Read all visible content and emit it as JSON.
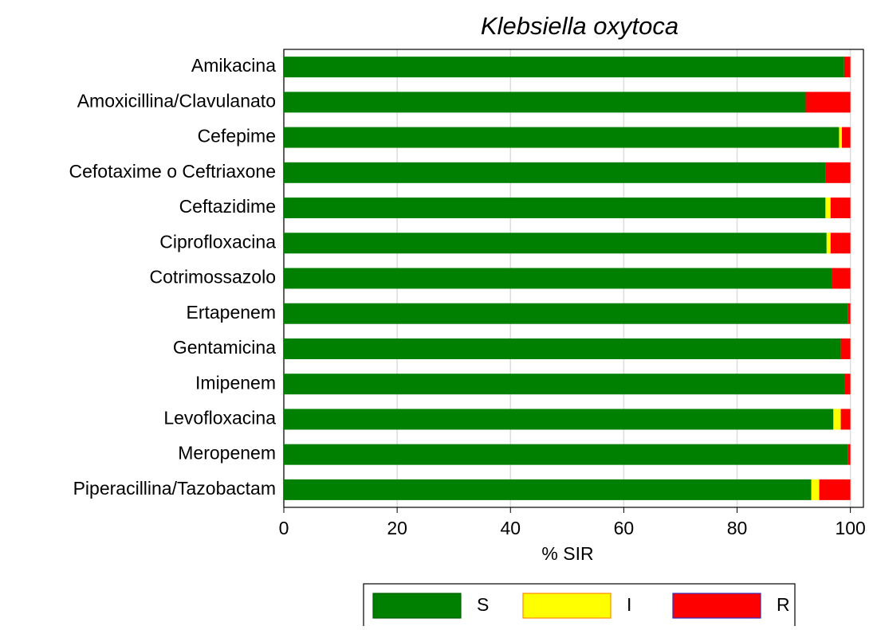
{
  "chart_data": {
    "type": "stacked_bar_horizontal",
    "title": "Klebsiella oxytoca",
    "xlabel": "% SIR",
    "categories": [
      "Amikacina",
      "Amoxicillina/Clavulanato",
      "Cefepime",
      "Cefotaxime o Ceftriaxone",
      "Ceftazidime",
      "Ciprofloxacina",
      "Cotrimossazolo",
      "Ertapenem",
      "Gentamicina",
      "Imipenem",
      "Levofloxacina",
      "Meropenem",
      "Piperacillina/Tazobactam"
    ],
    "series": [
      {
        "name": "S",
        "color": "#008000",
        "values": [
          98.9,
          92.1,
          98.0,
          95.6,
          95.6,
          95.8,
          96.8,
          99.6,
          98.3,
          99.0,
          97.0,
          99.6,
          93.1
        ]
      },
      {
        "name": "I",
        "color": "#ffff00",
        "values": [
          0,
          0,
          0.5,
          0,
          0.9,
          0.7,
          0,
          0,
          0,
          0,
          1.3,
          0,
          1.4
        ]
      },
      {
        "name": "R",
        "color": "#ff0000",
        "values": [
          1.1,
          7.9,
          1.5,
          4.4,
          3.5,
          3.5,
          3.2,
          0.4,
          1.7,
          1.0,
          1.7,
          0.4,
          5.5
        ]
      }
    ],
    "xlim": [
      0,
      102.3
    ],
    "xticks": [
      0,
      20,
      40,
      60,
      80,
      100
    ],
    "grid": true,
    "legend": "bottom"
  }
}
